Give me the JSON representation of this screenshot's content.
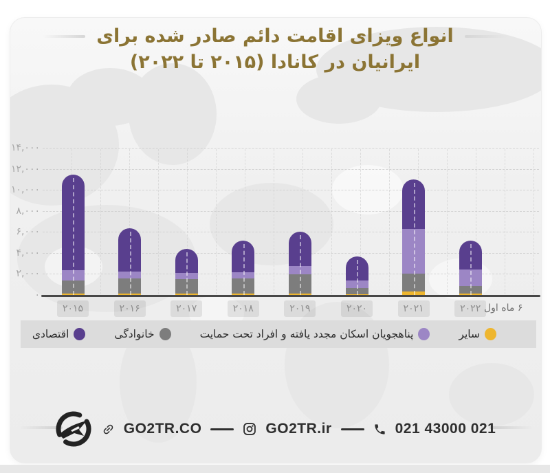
{
  "title": {
    "line1": "انواع ویزای اقامت دائم صادر شده برای",
    "line2": "ایرانیان در کانادا (۲۰۱۵ تا ۲۰۲۲)",
    "color": "#8b7434"
  },
  "chart_data": {
    "type": "bar",
    "stacked": true,
    "title": "انواع ویزای اقامت دائم صادر شده برای ایرانیان در کانادا (۲۰۱۵ تا ۲۰۲۲)",
    "categories": [
      "۲۰۱۵",
      "۲۰۱۶",
      "۲۰۱۷",
      "۲۰۱۸",
      "۲۰۱۹",
      "۲۰۲۰",
      "۲۰۲۱",
      "۲۰۲۲"
    ],
    "categories_latin": [
      "2015",
      "2016",
      "2017",
      "2018",
      "2019",
      "2020",
      "2021",
      "2022"
    ],
    "x_axis_note": "۶ ماه اول",
    "ylim": [
      0,
      14000
    ],
    "ytick_step": 2000,
    "ytick_labels": [
      "۰",
      "۲,۰۰۰",
      "۴,۰۰۰",
      "۶,۰۰۰",
      "۸,۰۰۰",
      "۱۰,۰۰۰",
      "۱۲,۰۰۰",
      "۱۴,۰۰۰"
    ],
    "grid": "dashed",
    "legend_position": "bottom",
    "series": [
      {
        "name": "سایر",
        "name_en": "other",
        "color": "#eeb62f",
        "values": [
          100,
          100,
          100,
          100,
          100,
          70,
          330,
          100
        ]
      },
      {
        "name": "خانوادگی",
        "name_en": "family",
        "color": "#7d7d7d",
        "values": [
          1250,
          1500,
          1380,
          1450,
          1850,
          590,
          1700,
          720
        ]
      },
      {
        "name": "پناهجویان اسکان مجدد یافته و افراد تحت حمایت",
        "name_en": "resettled-refugees-and-protected-persons",
        "color": "#9c86c5",
        "values": [
          1000,
          650,
          590,
          590,
          790,
          720,
          4280,
          1580
        ]
      },
      {
        "name": "اقتصادی",
        "name_en": "economic",
        "color": "#593f8e",
        "values": [
          9100,
          4070,
          2340,
          3060,
          3250,
          2300,
          4690,
          2760
        ]
      }
    ],
    "totals_estimated": [
      11450,
      6320,
      4410,
      5200,
      5990,
      3680,
      11000,
      5160
    ]
  },
  "legend": {
    "items": [
      {
        "label": "سایر",
        "key": "other",
        "color": "#eeb62f"
      },
      {
        "label": "پناهجویان اسکان مجدد یافته و افراد تحت حمایت",
        "key": "refugees",
        "color": "#9c86c5"
      },
      {
        "label": "خانوادگی",
        "key": "family",
        "color": "#7d7d7d"
      },
      {
        "label": "اقتصادی",
        "key": "economic",
        "color": "#593f8e"
      }
    ]
  },
  "footer": {
    "website": "GO2TR.CO",
    "instagram": "GO2TR.ir",
    "phone": "021 43000 021",
    "logo": "go2tr-plane-logo"
  }
}
